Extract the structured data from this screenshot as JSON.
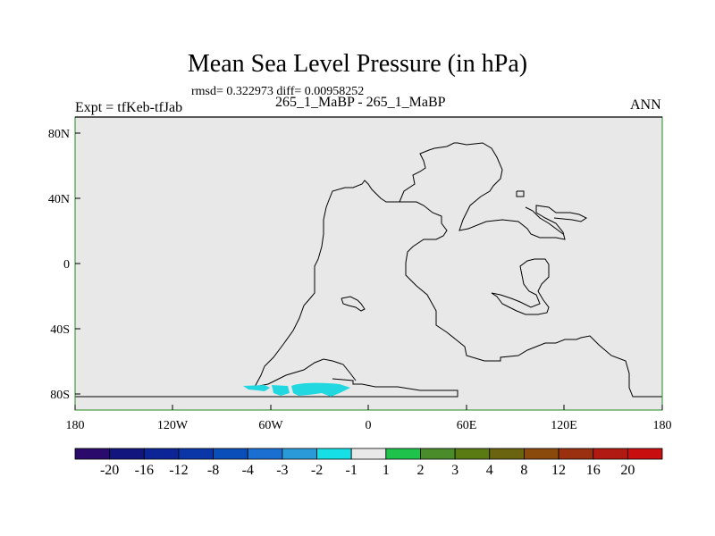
{
  "title": "Mean Sea Level Pressure (in hPa)",
  "stats": "rmsd= 0.322973 diff= 0.00958252",
  "experiment": "Expt = tfKeb-tfJab",
  "cases": "265_1_MaBP - 265_1_MaBP",
  "season": "ANN",
  "lat_ticks": [
    "80N",
    "40N",
    "0",
    "40S",
    "80S"
  ],
  "lon_ticks": [
    "180",
    "120W",
    "60W",
    "0",
    "60E",
    "120E",
    "180"
  ],
  "colorbar": {
    "labels": [
      "-20",
      "-16",
      "-12",
      "-8",
      "-4",
      "-3",
      "-2",
      "-1",
      "1",
      "2",
      "3",
      "4",
      "8",
      "12",
      "16",
      "20"
    ],
    "colors": [
      "#2a0a6b",
      "#12157e",
      "#0c2596",
      "#0b36a8",
      "#0a4eba",
      "#1a6fd0",
      "#2a9bd8",
      "#16e0e6",
      "#e8e8e8",
      "#1fc24a",
      "#4a8c2a",
      "#5a7a14",
      "#6a6410",
      "#8a4a0c",
      "#9a3010",
      "#b01a12",
      "#c80e0e"
    ]
  },
  "colors": {
    "map_background": "#e8e8e8",
    "frame": "#228b22",
    "coast": "#000000",
    "anomaly": "#22d8e0"
  }
}
